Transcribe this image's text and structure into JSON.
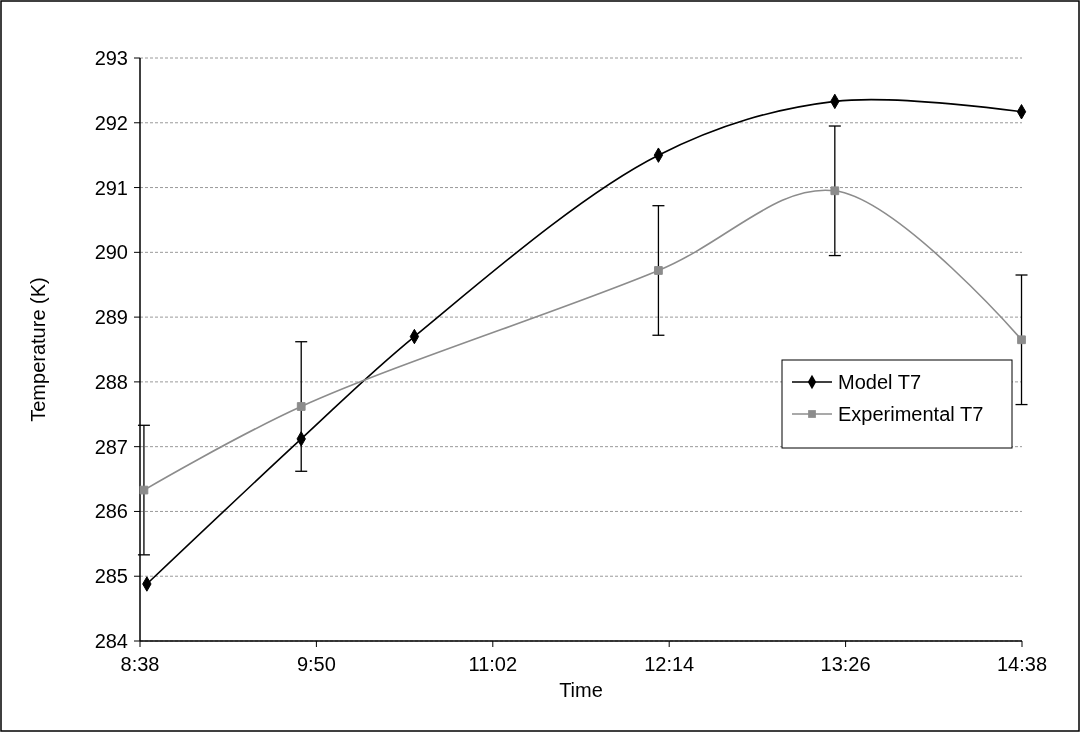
{
  "chart_data": {
    "type": "line",
    "xlabel": "Time",
    "ylabel": "Temperature (K)",
    "xlim": [
      8.6333,
      14.6333
    ],
    "xticks": [
      {
        "value": 8.6333,
        "label": "8:38"
      },
      {
        "value": 9.8333,
        "label": "9:50"
      },
      {
        "value": 11.0333,
        "label": "11:02"
      },
      {
        "value": 12.2333,
        "label": "12:14"
      },
      {
        "value": 13.4333,
        "label": "13:26"
      },
      {
        "value": 14.6333,
        "label": "14:38"
      }
    ],
    "ylim": [
      284,
      293
    ],
    "yticks": [
      284,
      285,
      286,
      287,
      288,
      289,
      290,
      291,
      292,
      293
    ],
    "grid": "y",
    "legend": "right",
    "series": [
      {
        "name": "Model T7",
        "color": "#000000",
        "marker": "diamond",
        "x": [
          8.68,
          9.73,
          10.5,
          12.16,
          13.36,
          14.63
        ],
        "values": [
          284.88,
          287.12,
          288.7,
          291.5,
          292.33,
          292.17
        ]
      },
      {
        "name": "Experimental T7",
        "color": "#8c8c8c",
        "marker": "square",
        "x": [
          8.66,
          9.73,
          12.16,
          13.36,
          14.63
        ],
        "values": [
          286.33,
          287.62,
          289.72,
          290.95,
          288.65
        ],
        "errors": [
          1,
          1,
          1,
          1,
          1
        ]
      }
    ]
  }
}
